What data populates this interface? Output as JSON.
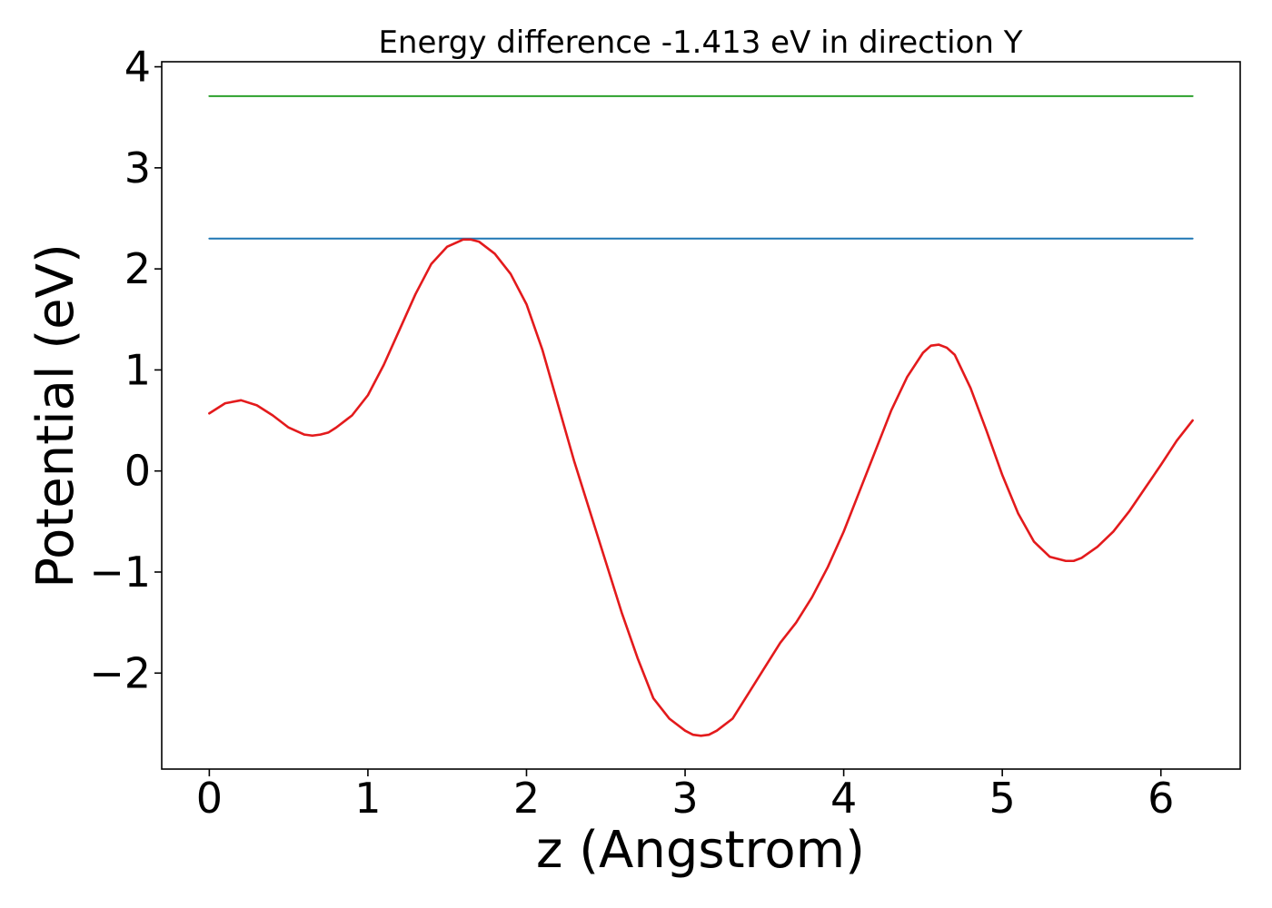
{
  "chart_data": {
    "type": "line",
    "title": "Energy difference -1.413 eV in direction Y",
    "xlabel": "z (Angstrom)",
    "ylabel": "Potential (eV)",
    "xlim": [
      -0.3,
      6.5
    ],
    "ylim": [
      -2.95,
      4.05
    ],
    "xticks": [
      0,
      1,
      2,
      3,
      4,
      5,
      6
    ],
    "xtick_labels": [
      "0",
      "1",
      "2",
      "3",
      "4",
      "5",
      "6"
    ],
    "yticks": [
      -2,
      -1,
      0,
      1,
      2,
      3,
      4
    ],
    "ytick_labels": [
      "−2",
      "−1",
      "0",
      "1",
      "2",
      "3",
      "4"
    ],
    "grid": false,
    "series": [
      {
        "color": "#1f77b4",
        "style": "horizontal",
        "x": [
          0,
          6.2
        ],
        "y": [
          2.3,
          2.3
        ]
      },
      {
        "color": "#2ca02c",
        "style": "horizontal",
        "x": [
          0,
          6.2
        ],
        "y": [
          3.71,
          3.71
        ]
      },
      {
        "color": "#e31a1c",
        "x": [
          0,
          0.1,
          0.2,
          0.3,
          0.4,
          0.5,
          0.6,
          0.65,
          0.7,
          0.75,
          0.8,
          0.9,
          1.0,
          1.1,
          1.2,
          1.3,
          1.4,
          1.5,
          1.6,
          1.65,
          1.7,
          1.8,
          1.9,
          2.0,
          2.1,
          2.2,
          2.3,
          2.4,
          2.5,
          2.6,
          2.7,
          2.8,
          2.9,
          3.0,
          3.05,
          3.1,
          3.15,
          3.2,
          3.3,
          3.4,
          3.5,
          3.6,
          3.7,
          3.8,
          3.9,
          4.0,
          4.1,
          4.2,
          4.3,
          4.4,
          4.5,
          4.55,
          4.6,
          4.65,
          4.7,
          4.8,
          4.9,
          5.0,
          5.1,
          5.2,
          5.3,
          5.4,
          5.45,
          5.5,
          5.6,
          5.7,
          5.8,
          5.9,
          6.0,
          6.1,
          6.2
        ],
        "y": [
          0.57,
          0.67,
          0.7,
          0.65,
          0.55,
          0.43,
          0.36,
          0.35,
          0.36,
          0.38,
          0.43,
          0.55,
          0.75,
          1.05,
          1.4,
          1.75,
          2.05,
          2.22,
          2.29,
          2.29,
          2.27,
          2.15,
          1.95,
          1.65,
          1.2,
          0.65,
          0.1,
          -0.4,
          -0.9,
          -1.4,
          -1.85,
          -2.25,
          -2.45,
          -2.57,
          -2.61,
          -2.62,
          -2.61,
          -2.57,
          -2.45,
          -2.2,
          -1.95,
          -1.7,
          -1.5,
          -1.25,
          -0.95,
          -0.6,
          -0.2,
          0.2,
          0.6,
          0.93,
          1.17,
          1.24,
          1.25,
          1.22,
          1.15,
          0.82,
          0.4,
          -0.04,
          -0.42,
          -0.7,
          -0.85,
          -0.89,
          -0.89,
          -0.86,
          -0.75,
          -0.6,
          -0.4,
          -0.17,
          0.06,
          0.3,
          0.5
        ]
      }
    ]
  }
}
